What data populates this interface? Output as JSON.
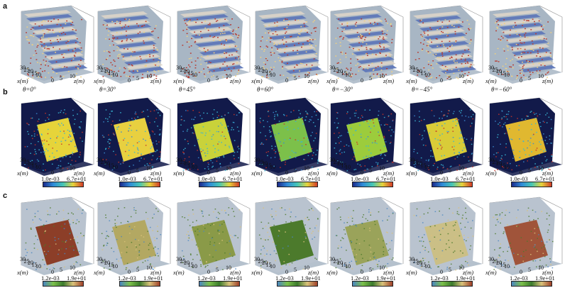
{
  "row_labels": [
    "a",
    "b",
    "c"
  ],
  "axis": {
    "x_label": "x(m)",
    "z_label": "z(m)",
    "x_ticks": [
      "30",
      "25",
      "20",
      "15",
      "10"
    ],
    "z_ticks": [
      "0",
      "5",
      "10"
    ]
  },
  "angles": [
    "θ=0°",
    "θ=30°",
    "θ=45°",
    "θ=60°",
    "θ=−30°",
    "θ=−45°",
    "θ=−60°"
  ],
  "colorbar_b": {
    "min": "1.0e-03",
    "max": "6.7e+01"
  },
  "colorbar_c": {
    "min": "1.2e-03",
    "max": "1.9e+01"
  },
  "colors": {
    "frame": "#8c8c8c",
    "floor": "#a8b6c4",
    "rock_a": "#d9d3c8",
    "blue_a": "#5f78b8",
    "red_a": "#b8362a",
    "dark_b": "#121a4a",
    "yellow_b": "#e6d43a",
    "cyan_b": "#38b7d4",
    "red_b": "#c83428",
    "gray_c": "#b9c3cf",
    "green_c": "#4c7a2c",
    "olive_c": "#b3a862",
    "brown_c": "#8c3e28"
  }
}
